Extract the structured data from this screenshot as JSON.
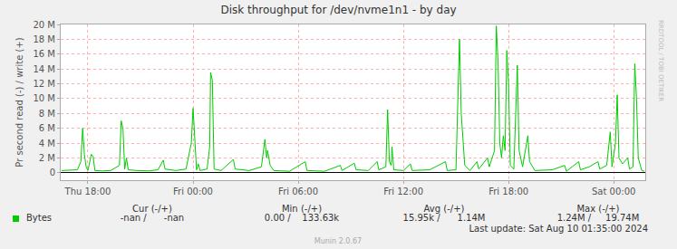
{
  "chart_data": {
    "type": "line",
    "title": "Disk throughput for /dev/nvme1n1 - by day",
    "y_label": "Pr second read (-) / write (+)",
    "x": [
      16.5,
      17.0,
      17.4,
      17.6,
      17.7,
      17.8,
      17.9,
      18.0,
      18.2,
      18.3,
      18.4,
      18.8,
      19.3,
      19.8,
      19.9,
      20.0,
      20.1,
      20.2,
      20.3,
      20.8,
      21.5,
      22.0,
      22.3,
      22.4,
      23.0,
      23.6,
      23.9,
      24.0,
      24.1,
      24.2,
      24.3,
      24.4,
      24.8,
      24.95,
      25.0,
      25.1,
      25.2,
      25.6,
      26.3,
      26.4,
      27.2,
      27.9,
      28.1,
      28.2,
      28.25,
      28.4,
      28.6,
      29.5,
      30.4,
      30.5,
      31.5,
      32.4,
      32.5,
      33.2,
      33.3,
      34.0,
      34.5,
      34.6,
      35.0,
      35.1,
      35.2,
      35.3,
      35.35,
      35.45,
      36.0,
      36.4,
      36.5,
      37.5,
      38.4,
      38.5,
      39.0,
      39.2,
      39.3,
      39.4,
      39.5,
      39.8,
      40.2,
      40.3,
      40.8,
      40.9,
      41.2,
      41.3,
      41.4,
      41.5,
      41.6,
      41.7,
      41.8,
      41.9,
      42.0,
      42.1,
      42.3,
      42.5,
      42.6,
      42.8,
      43.1,
      43.2,
      43.5,
      44.5,
      45.2,
      45.3,
      46.0,
      46.1,
      46.6,
      47.1,
      47.2,
      47.6,
      47.8,
      47.9,
      48.1,
      48.2,
      48.3,
      48.5,
      48.8,
      48.9,
      49.1,
      49.2,
      49.3,
      49.4,
      49.6,
      49.75
    ],
    "series": [
      {
        "name": "Bytes",
        "color": "#00CC00",
        "values": [
          300000,
          350000,
          400000,
          1500000,
          6000000,
          2500000,
          800000,
          300000,
          2500000,
          2200000,
          300000,
          250000,
          300000,
          1000000,
          7000000,
          6000000,
          500000,
          2000000,
          400000,
          300000,
          250000,
          400000,
          1700000,
          500000,
          300000,
          500000,
          4000000,
          8700000,
          4000000,
          400000,
          1200000,
          300000,
          500000,
          3500000,
          13500000,
          12500000,
          500000,
          300000,
          1800000,
          500000,
          300000,
          800000,
          4500000,
          2000000,
          3000000,
          1000000,
          300000,
          200000,
          1500000,
          300000,
          200000,
          1000000,
          300000,
          1300000,
          400000,
          300000,
          1500000,
          400000,
          800000,
          8500000,
          1500000,
          1000000,
          3500000,
          400000,
          300000,
          1200000,
          300000,
          400000,
          1500000,
          300000,
          400000,
          18000000,
          8000000,
          5000000,
          1000000,
          300000,
          1500000,
          500000,
          2000000,
          800000,
          3000000,
          19800000,
          15000000,
          4000000,
          2000000,
          5000000,
          3000000,
          16500000,
          12000000,
          1000000,
          500000,
          14500000,
          3000000,
          800000,
          5000000,
          1500000,
          300000,
          400000,
          1000000,
          200000,
          1500000,
          400000,
          800000,
          1500000,
          500000,
          1000000,
          5500000,
          800000,
          4000000,
          10500000,
          2000000,
          1200000,
          2000000,
          500000,
          800000,
          14700000,
          10000000,
          2000000,
          300000,
          200000
        ]
      }
    ],
    "xlim": [
      16.45,
      49.8
    ],
    "xticks": [
      {
        "value": 18,
        "label": "Thu 18:00"
      },
      {
        "value": 24,
        "label": "Fri 00:00"
      },
      {
        "value": 30,
        "label": "Fri 06:00"
      },
      {
        "value": 36,
        "label": "Fri 12:00"
      },
      {
        "value": 42,
        "label": "Fri 18:00"
      },
      {
        "value": 48,
        "label": "Sat 00:00"
      }
    ],
    "ylim": [
      -1000000,
      20000000
    ],
    "yticks": [
      0,
      {
        "value": 2000000,
        "label": "2 M"
      },
      {
        "value": 4000000,
        "label": "4 M"
      },
      {
        "value": 6000000,
        "label": "6 M"
      },
      {
        "value": 8000000,
        "label": "8 M"
      },
      {
        "value": 10000000,
        "label": "10 M"
      },
      {
        "value": 12000000,
        "label": "12 M"
      },
      {
        "value": 14000000,
        "label": "14 M"
      },
      {
        "value": 16000000,
        "label": "16 M"
      },
      {
        "value": 18000000,
        "label": "18 M"
      },
      {
        "value": 20000000,
        "label": "20 M"
      }
    ],
    "grid": true,
    "legend": "bottom",
    "summary": {
      "columns": [
        "Cur (-/+)",
        "Min (-/+)",
        "Avg (-/+)",
        "Max (-/+)"
      ],
      "rows": [
        {
          "name": "Bytes",
          "values": [
            "-nan /      -nan",
            "0.00 /    133.63k",
            "15.95k /      1.14M",
            "1.24M /     19.74M"
          ]
        }
      ],
      "last_update": "Last update: Sat Aug 10 01:35:00 2024",
      "credit": "Munin 2.0.67",
      "side_text": "RRDTOOL / TOBI OETIKER"
    }
  }
}
